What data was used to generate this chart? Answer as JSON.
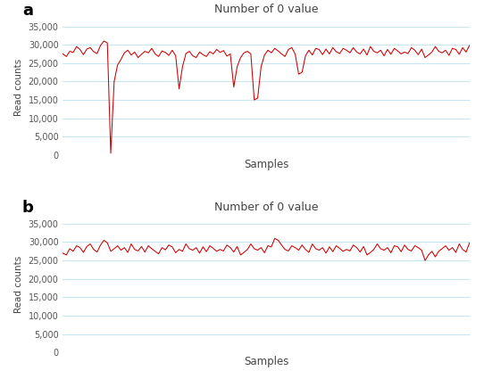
{
  "title": "Number of 0 value",
  "xlabel": "Samples",
  "ylabel": "Read counts",
  "yticks": [
    0,
    5000,
    10000,
    15000,
    20000,
    25000,
    30000,
    35000
  ],
  "line_color": "#cc0000",
  "bg_color": "#ffffff",
  "grid_color": "#c8e6f0",
  "label_a": "a",
  "label_b": "b",
  "panel_a": [
    27500,
    26800,
    28200,
    27900,
    29500,
    28700,
    27300,
    28800,
    29200,
    28100,
    27600,
    29800,
    31000,
    30500,
    500,
    20000,
    24500,
    26000,
    27800,
    28500,
    27200,
    28000,
    26500,
    27400,
    28200,
    27800,
    29000,
    27500,
    26800,
    28300,
    27900,
    27100,
    28500,
    27000,
    18000,
    24000,
    27600,
    28200,
    27000,
    26500,
    28000,
    27300,
    26800,
    28100,
    27500,
    28700,
    27900,
    28400,
    26900,
    27500,
    18500,
    24000,
    26500,
    27800,
    28200,
    27500,
    15000,
    15500,
    24000,
    27200,
    28500,
    27800,
    29000,
    28300,
    27500,
    26800,
    28700,
    29200,
    27400,
    22000,
    22500,
    27000,
    28500,
    27200,
    29000,
    28700,
    27300,
    28800,
    27500,
    29200,
    28100,
    27600,
    29000,
    28500,
    27800,
    29200,
    28000,
    27500,
    28800,
    27200,
    29500,
    28200,
    27800,
    28500,
    27000,
    28700,
    27400,
    29000,
    28300,
    27500,
    28000,
    27600,
    29200,
    28500,
    27300,
    28800,
    26500,
    27200,
    28000,
    29500,
    28200,
    27800,
    28500,
    27100,
    29000,
    28700,
    27400,
    29200,
    28000,
    29800
  ],
  "panel_b": [
    27000,
    26500,
    28200,
    27500,
    29000,
    28500,
    27200,
    28800,
    29500,
    28000,
    27300,
    29200,
    30500,
    29800,
    27500,
    28200,
    29000,
    27800,
    28500,
    27200,
    29500,
    28000,
    27600,
    28800,
    27300,
    29000,
    28200,
    27500,
    26800,
    28500,
    27900,
    29200,
    28700,
    27100,
    28000,
    27500,
    29500,
    28200,
    27800,
    28500,
    27000,
    28700,
    27400,
    29000,
    28300,
    27500,
    28000,
    27600,
    29200,
    28500,
    27300,
    28800,
    26500,
    27200,
    28000,
    29500,
    28200,
    27800,
    28500,
    27100,
    29000,
    28700,
    31000,
    30500,
    29200,
    28000,
    27600,
    29000,
    28500,
    27800,
    29200,
    28000,
    27200,
    29500,
    28200,
    27800,
    28500,
    27000,
    28700,
    27400,
    29000,
    28300,
    27500,
    28000,
    27600,
    29200,
    28500,
    27300,
    28800,
    26500,
    27200,
    28000,
    29500,
    28200,
    27800,
    28500,
    27100,
    29000,
    28700,
    27400,
    29200,
    28000,
    27600,
    29000,
    28500,
    27800,
    25000,
    26500,
    27500,
    26000,
    27500,
    28200,
    29000,
    27800,
    28500,
    27200,
    29500,
    28000,
    27300,
    29800
  ]
}
